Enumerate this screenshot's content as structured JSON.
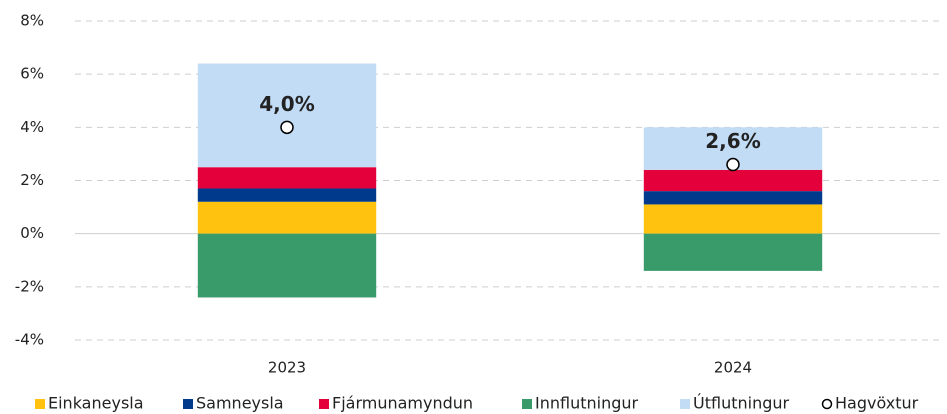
{
  "chart_data": {
    "type": "bar",
    "stacked": true,
    "categories": [
      "2023",
      "2024"
    ],
    "series": [
      {
        "name": "Einkaneysla",
        "color": "#ffc20e",
        "values": [
          1.2,
          1.1
        ]
      },
      {
        "name": "Samneysla",
        "color": "#003a8c",
        "values": [
          0.5,
          0.5
        ]
      },
      {
        "name": "Fjármunamyndun",
        "color": "#e4003b",
        "values": [
          0.8,
          0.8
        ]
      },
      {
        "name": "Innflutningur",
        "color": "#3a9b6a",
        "values": [
          -2.4,
          -1.4
        ]
      },
      {
        "name": "Útflutningur",
        "color": "#c2dcf5",
        "values": [
          3.9,
          1.6
        ]
      },
      {
        "name": "Hagvöxtur",
        "type": "scatter",
        "color": "#ffffff",
        "values": [
          4.0,
          2.6
        ],
        "value_labels": [
          "4,0%",
          "2,6%"
        ]
      }
    ],
    "ylim": [
      -4,
      8
    ],
    "yticks": [
      {
        "value": -4,
        "label": "-4%"
      },
      {
        "value": -2,
        "label": "-2%"
      },
      {
        "value": 0,
        "label": "0%"
      },
      {
        "value": 2,
        "label": "2%"
      },
      {
        "value": 4,
        "label": "4%"
      },
      {
        "value": 6,
        "label": "6%"
      },
      {
        "value": 8,
        "label": "8%"
      }
    ],
    "grid": true,
    "legend": "bottom"
  }
}
